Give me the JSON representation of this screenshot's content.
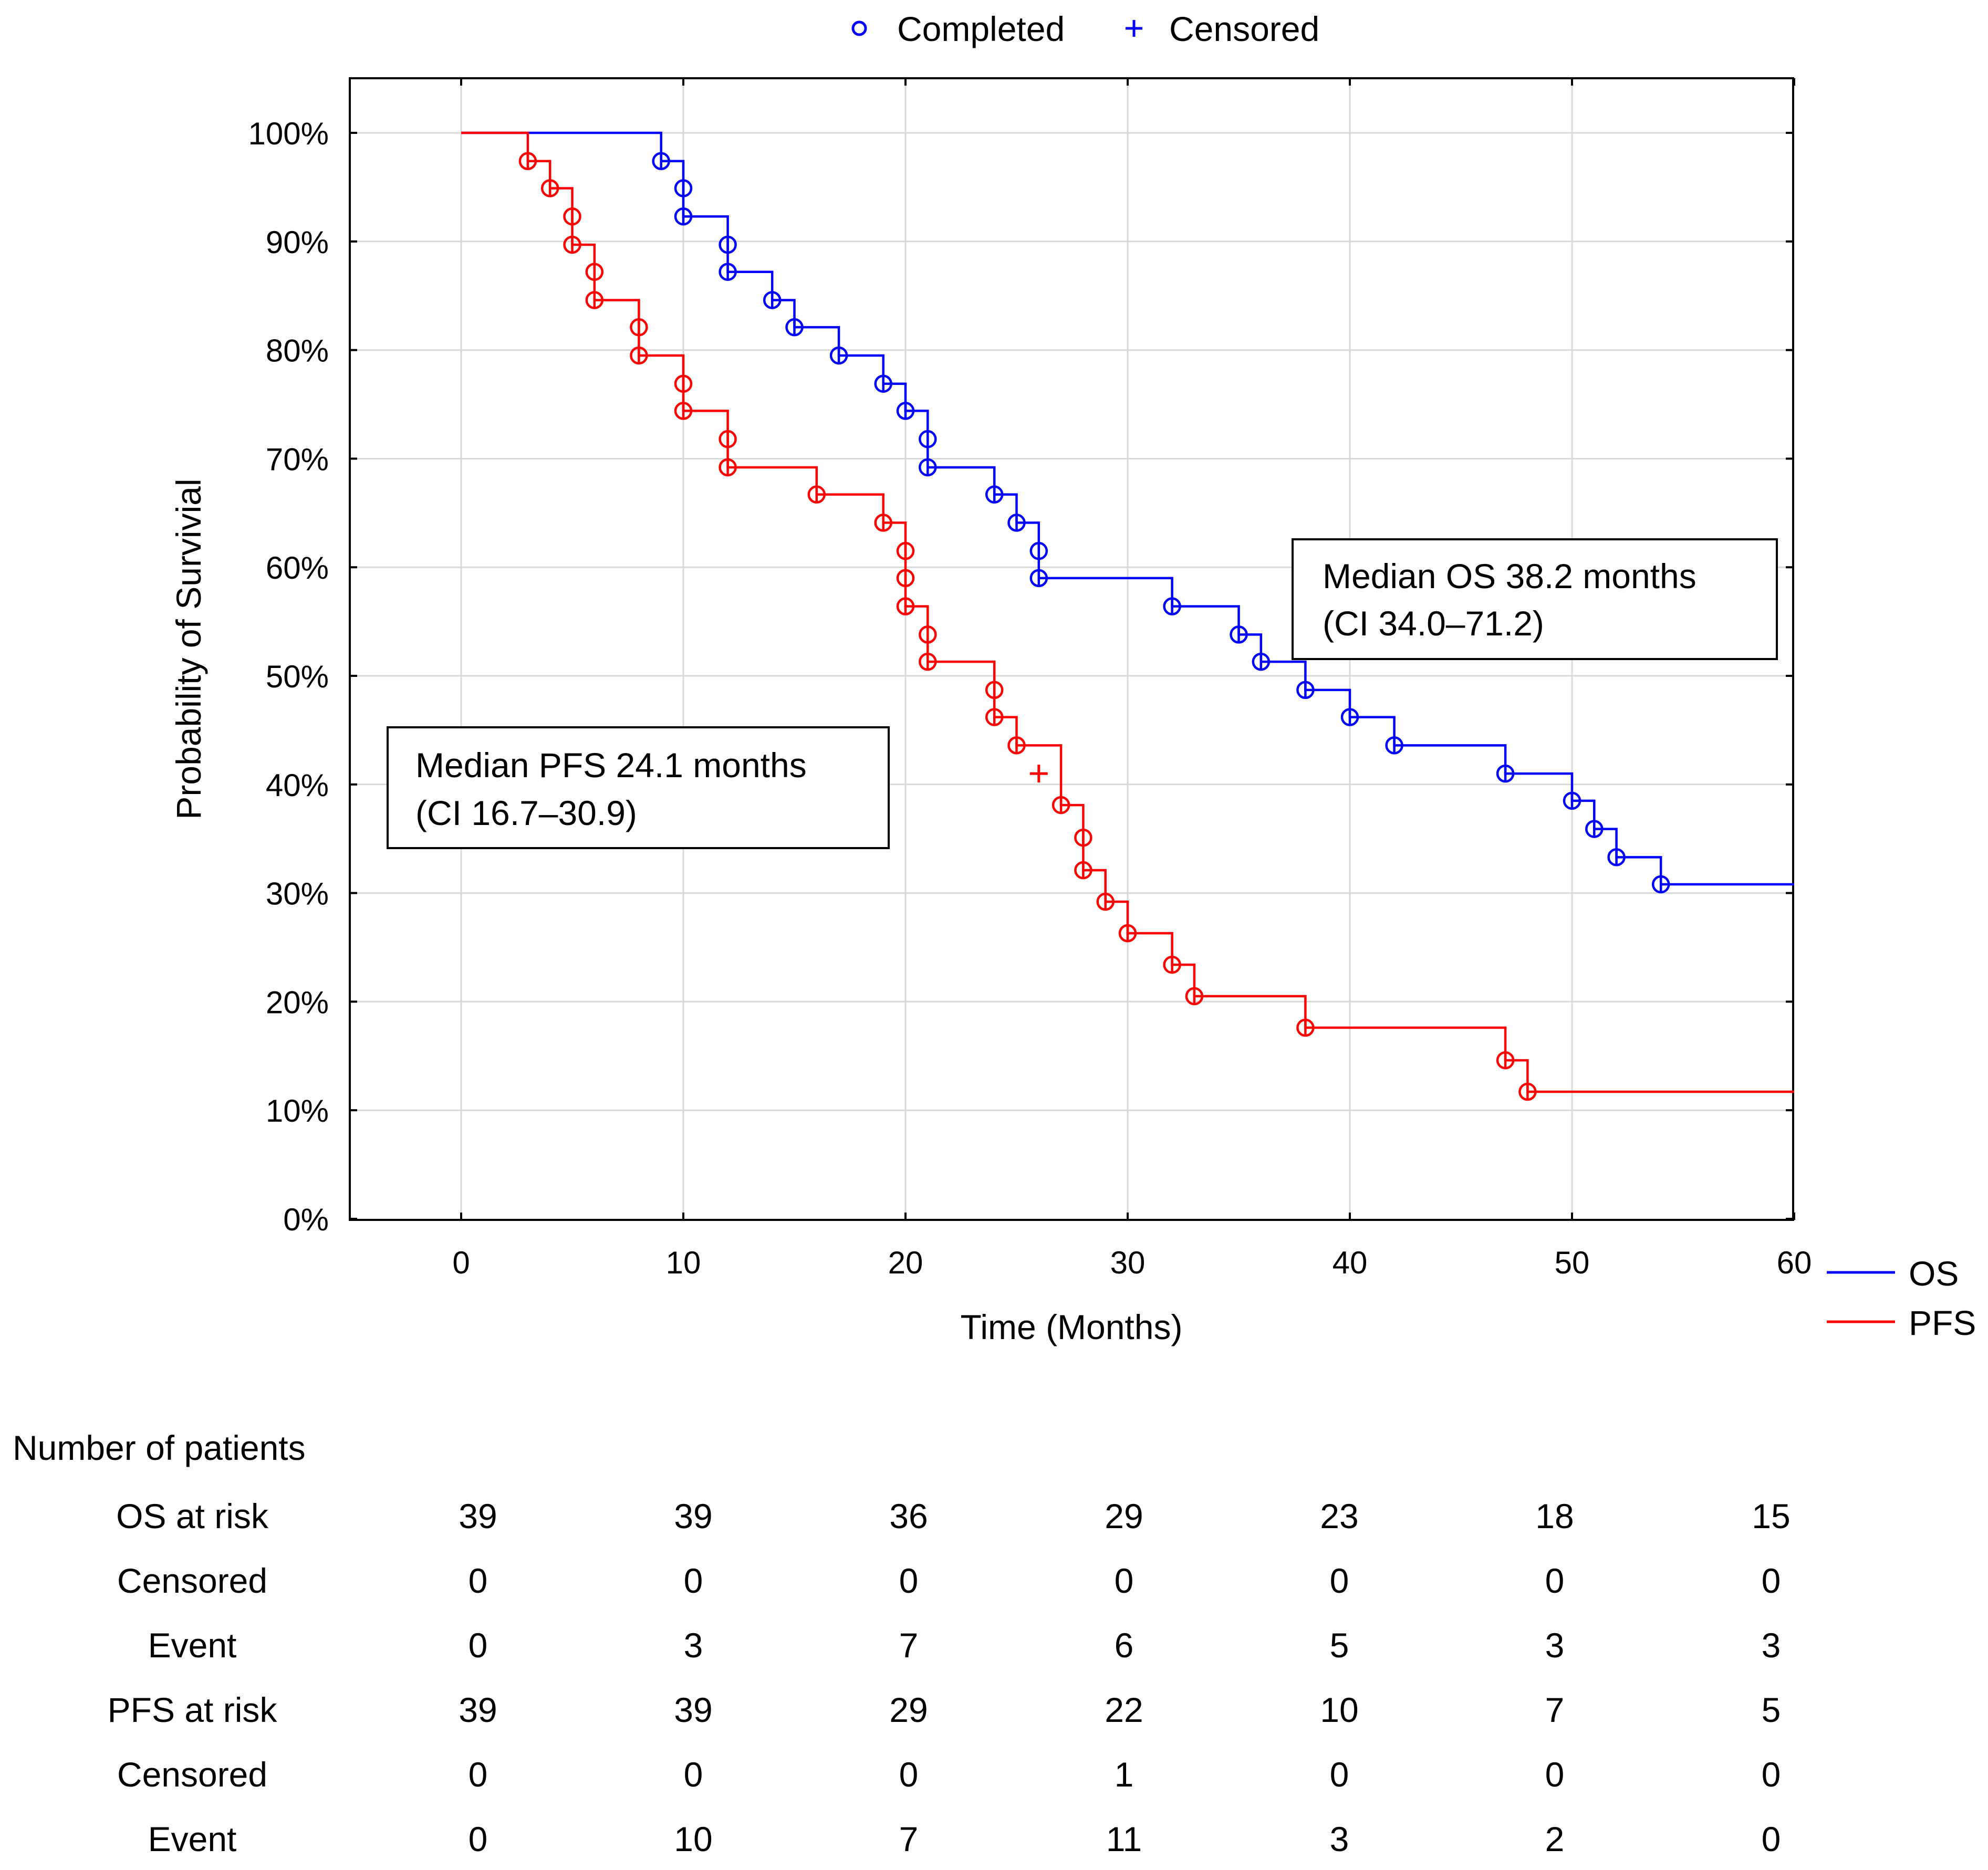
{
  "chart_data": {
    "type": "line",
    "subtype": "kaplan-meier",
    "xlabel": "Time (Months)",
    "ylabel": "Probability of Survivial",
    "xlim": [
      -5,
      60
    ],
    "ylim": [
      0,
      105
    ],
    "x_ticks": [
      0,
      10,
      20,
      30,
      40,
      50,
      60
    ],
    "y_ticks": [
      0,
      10,
      20,
      30,
      40,
      50,
      60,
      70,
      80,
      90,
      100
    ],
    "y_tick_labels": [
      "0%",
      "10%",
      "20%",
      "30%",
      "40%",
      "50%",
      "60%",
      "70%",
      "80%",
      "90%",
      "100%"
    ],
    "grid": true,
    "top_legend": {
      "completed": "Completed",
      "censored": "Censored"
    },
    "series": [
      {
        "name": "OS",
        "color": "#0000ff",
        "steps": [
          [
            0,
            100
          ],
          [
            9,
            97.4
          ],
          [
            10,
            94.9
          ],
          [
            10,
            92.3
          ],
          [
            12,
            89.7
          ],
          [
            12,
            87.2
          ],
          [
            14,
            84.6
          ],
          [
            15,
            82.1
          ],
          [
            17,
            79.5
          ],
          [
            19,
            76.9
          ],
          [
            20,
            74.4
          ],
          [
            21,
            71.8
          ],
          [
            21,
            69.2
          ],
          [
            24,
            66.7
          ],
          [
            25,
            64.1
          ],
          [
            26,
            61.5
          ],
          [
            26,
            59.0
          ],
          [
            32,
            56.4
          ],
          [
            35,
            53.8
          ],
          [
            36,
            51.3
          ],
          [
            38,
            48.7
          ],
          [
            40,
            46.2
          ],
          [
            42,
            43.6
          ],
          [
            47,
            41.0
          ],
          [
            50,
            38.5
          ],
          [
            51,
            35.9
          ],
          [
            52,
            33.3
          ],
          [
            54,
            30.8
          ]
        ],
        "end_x": 60,
        "censored": []
      },
      {
        "name": "PFS",
        "color": "#ff0000",
        "steps": [
          [
            0,
            100
          ],
          [
            3,
            97.4
          ],
          [
            4,
            94.9
          ],
          [
            5,
            92.3
          ],
          [
            5,
            89.7
          ],
          [
            6,
            87.2
          ],
          [
            6,
            84.6
          ],
          [
            8,
            82.1
          ],
          [
            8,
            79.5
          ],
          [
            10,
            76.9
          ],
          [
            10,
            74.4
          ],
          [
            12,
            71.8
          ],
          [
            12,
            69.2
          ],
          [
            16,
            66.7
          ],
          [
            19,
            64.1
          ],
          [
            20,
            61.5
          ],
          [
            20,
            59.0
          ],
          [
            20,
            56.4
          ],
          [
            21,
            53.8
          ],
          [
            21,
            51.3
          ],
          [
            24,
            48.7
          ],
          [
            24,
            46.2
          ],
          [
            25,
            43.6
          ],
          [
            27,
            38.1
          ],
          [
            28,
            35.1
          ],
          [
            28,
            32.1
          ],
          [
            29,
            29.2
          ],
          [
            30,
            26.3
          ],
          [
            32,
            23.4
          ],
          [
            33,
            20.5
          ],
          [
            38,
            17.6
          ],
          [
            47,
            14.6
          ],
          [
            48,
            11.7
          ]
        ],
        "end_x": 60,
        "censored": [
          [
            26,
            41.0
          ]
        ]
      }
    ],
    "legend": [
      "OS",
      "PFS"
    ],
    "annotations": [
      {
        "lines": [
          "Median OS 38.2 months",
          "(CI 34.0–71.2)"
        ]
      },
      {
        "lines": [
          "Median PFS 24.1 months",
          "(CI 16.7–30.9)"
        ]
      }
    ]
  },
  "risk_table": {
    "title": "Number of patients",
    "rows": [
      {
        "label": "OS at risk",
        "values": [
          39,
          39,
          36,
          29,
          23,
          18,
          15
        ]
      },
      {
        "label": "Censored",
        "values": [
          0,
          0,
          0,
          0,
          0,
          0,
          0
        ]
      },
      {
        "label": "Event",
        "values": [
          0,
          3,
          7,
          6,
          5,
          3,
          3
        ]
      },
      {
        "label": "PFS at risk",
        "values": [
          39,
          39,
          29,
          22,
          10,
          7,
          5
        ]
      },
      {
        "label": "Censored",
        "values": [
          0,
          0,
          0,
          1,
          0,
          0,
          0
        ]
      },
      {
        "label": "Event",
        "values": [
          0,
          10,
          7,
          11,
          3,
          2,
          0
        ]
      }
    ]
  }
}
